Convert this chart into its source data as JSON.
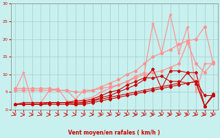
{
  "background_color": "#c8f0ee",
  "grid_color": "#a0cece",
  "xlabel": "Vent moyen/en rafales ( km/h )",
  "xlabel_color": "#cc0000",
  "tick_color": "#cc0000",
  "xlim": [
    -0.5,
    23.5
  ],
  "ylim": [
    0,
    30
  ],
  "yticks": [
    0,
    5,
    10,
    15,
    20,
    25,
    30
  ],
  "xticks": [
    0,
    1,
    2,
    3,
    4,
    5,
    6,
    7,
    8,
    9,
    10,
    11,
    12,
    13,
    14,
    15,
    16,
    17,
    18,
    19,
    20,
    21,
    22,
    23
  ],
  "lines": [
    {
      "x": [
        0,
        1,
        2,
        3,
        4,
        5,
        6,
        7,
        8,
        9,
        10,
        11,
        12,
        13,
        14,
        15,
        16,
        17,
        18,
        19,
        20,
        21,
        22,
        23
      ],
      "y": [
        1.5,
        1.5,
        1.5,
        1.5,
        1.5,
        1.5,
        1.5,
        1.5,
        1.5,
        2,
        2.5,
        3,
        3.5,
        4,
        4.5,
        5,
        5.5,
        6,
        6.5,
        7,
        7.5,
        8,
        4,
        4
      ],
      "color": "#cc0000",
      "lw": 0.8,
      "marker": "D",
      "ms": 2.0,
      "zorder": 4
    },
    {
      "x": [
        0,
        1,
        2,
        3,
        4,
        5,
        6,
        7,
        8,
        9,
        10,
        11,
        12,
        13,
        14,
        15,
        16,
        17,
        18,
        19,
        20,
        21,
        22,
        23
      ],
      "y": [
        1.5,
        2,
        2,
        2,
        2,
        2,
        2,
        1.5,
        2,
        2.5,
        3,
        3.5,
        4,
        4.5,
        5,
        5.5,
        6,
        6.5,
        7,
        7.5,
        10.5,
        7.5,
        1.0,
        4
      ],
      "color": "#cc0000",
      "lw": 0.8,
      "marker": "^",
      "ms": 2.5,
      "zorder": 4
    },
    {
      "x": [
        0,
        1,
        2,
        3,
        4,
        5,
        6,
        7,
        8,
        9,
        10,
        11,
        12,
        13,
        14,
        15,
        16,
        17,
        18,
        19,
        20,
        21,
        22,
        23
      ],
      "y": [
        1.5,
        1.5,
        1.5,
        1.5,
        2,
        2,
        2,
        2,
        2,
        2.5,
        3.5,
        4,
        5,
        6,
        7,
        8.5,
        11.5,
        6,
        11,
        11,
        10.5,
        10.5,
        1.0,
        4
      ],
      "color": "#cc0000",
      "lw": 0.8,
      "marker": "D",
      "ms": 2.0,
      "zorder": 4
    },
    {
      "x": [
        0,
        1,
        2,
        3,
        4,
        5,
        6,
        7,
        8,
        9,
        10,
        11,
        12,
        13,
        14,
        15,
        16,
        17,
        18,
        19,
        20,
        21,
        22,
        23
      ],
      "y": [
        1.5,
        1.5,
        1.5,
        1.5,
        2,
        2,
        2,
        2.5,
        2.5,
        3,
        4,
        5,
        5.5,
        7,
        8,
        9,
        9,
        9.5,
        8,
        8,
        7.5,
        8,
        1.0,
        4.5
      ],
      "color": "#cc0000",
      "lw": 0.8,
      "marker": "D",
      "ms": 2.0,
      "zorder": 4
    },
    {
      "x": [
        0,
        1,
        2,
        3,
        4,
        5,
        6,
        7,
        8,
        9,
        10,
        11,
        12,
        13,
        14,
        15,
        16,
        17,
        18,
        19,
        20,
        21,
        22,
        23
      ],
      "y": [
        5.5,
        10.5,
        2,
        2,
        5.5,
        6,
        2.5,
        2,
        3,
        3.5,
        5,
        6,
        7,
        8,
        9.5,
        10.5,
        24.5,
        16,
        27,
        16,
        23.5,
        5,
        13,
        13
      ],
      "color": "#ff9090",
      "lw": 0.9,
      "marker": "+",
      "ms": 3.5,
      "zorder": 2
    },
    {
      "x": [
        0,
        1,
        2,
        3,
        4,
        5,
        6,
        7,
        8,
        9,
        10,
        11,
        12,
        13,
        14,
        15,
        16,
        17,
        18,
        19,
        20,
        21,
        22,
        23
      ],
      "y": [
        6,
        6,
        6,
        6,
        6,
        5.5,
        5.5,
        3,
        5.5,
        5.5,
        6,
        6.5,
        7,
        8,
        9,
        10,
        10.5,
        11,
        12,
        13,
        19,
        13,
        10.5,
        13.5
      ],
      "color": "#ff9090",
      "lw": 0.9,
      "marker": "o",
      "ms": 2.5,
      "zorder": 2
    },
    {
      "x": [
        0,
        1,
        2,
        3,
        4,
        5,
        6,
        7,
        8,
        9,
        10,
        11,
        12,
        13,
        14,
        15,
        16,
        17,
        18,
        19,
        20,
        21,
        22,
        23
      ],
      "y": [
        5.5,
        5.5,
        5.5,
        5.5,
        5.5,
        5.5,
        5.5,
        5.0,
        5.0,
        5.5,
        6.5,
        7.5,
        8.5,
        10,
        11,
        13,
        15,
        16,
        17,
        18.5,
        19.5,
        20,
        23.5,
        13
      ],
      "color": "#ff9090",
      "lw": 0.9,
      "marker": "o",
      "ms": 2.5,
      "zorder": 2
    }
  ],
  "arrow_color": "#cc0000",
  "arrow_angles": [
    130,
    100,
    110,
    130,
    105,
    115,
    100,
    120,
    100,
    110,
    100,
    115,
    100,
    110,
    100,
    115,
    100,
    115,
    100,
    110,
    100,
    120,
    115,
    100
  ]
}
